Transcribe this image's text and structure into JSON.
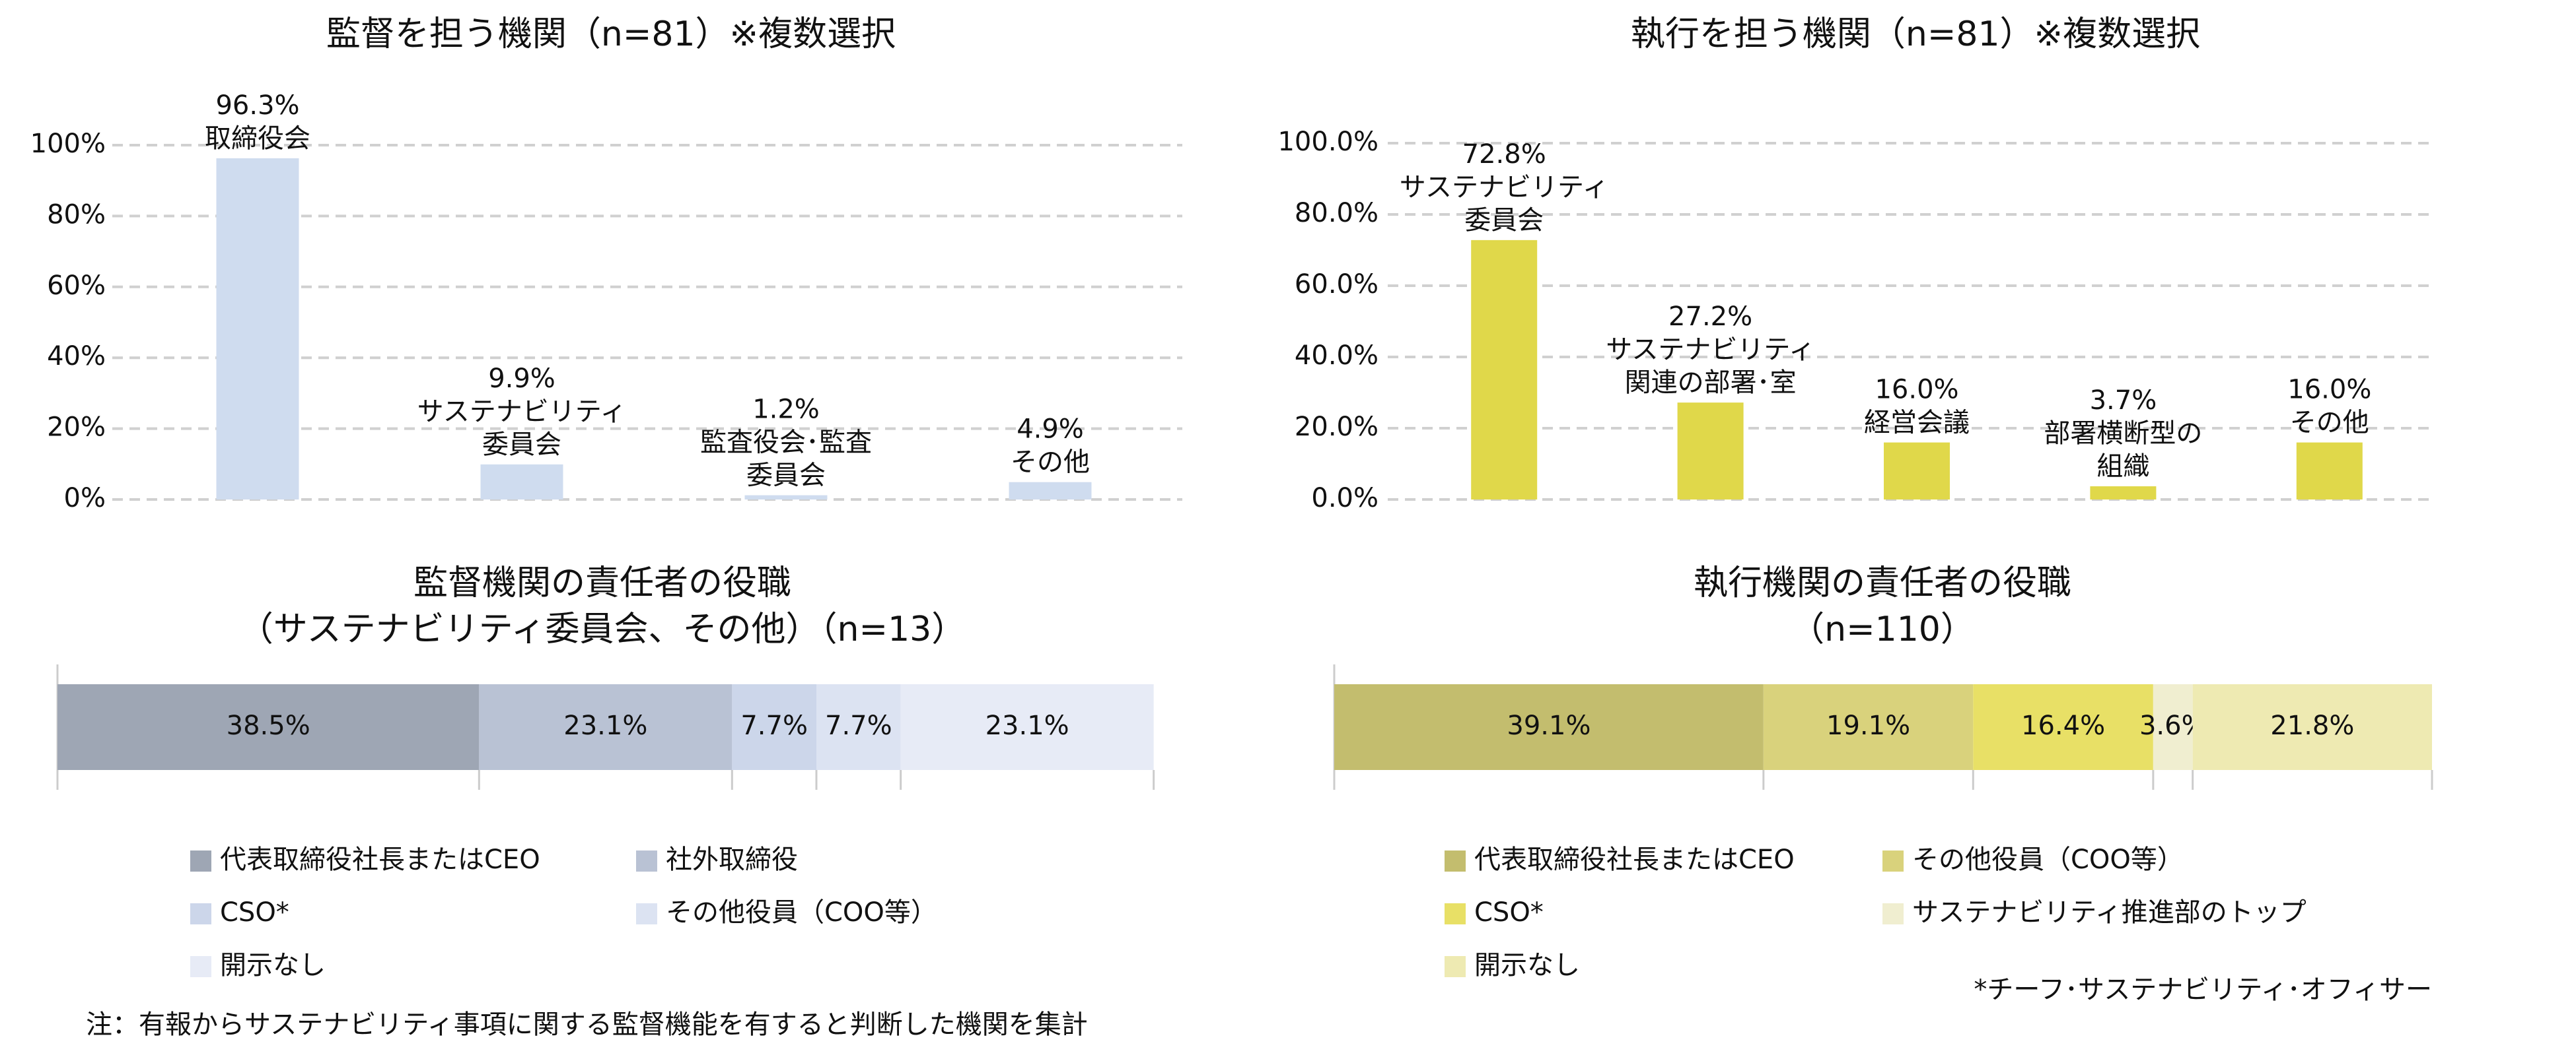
{
  "chart_data": [
    {
      "type": "bar",
      "title": "監督を担う機関（n=81）※複数選択",
      "categories": [
        "取締役会",
        "サステナビリティ\n委員会",
        "監査役会･監査\n委員会",
        "その他"
      ],
      "values": [
        96.3,
        9.9,
        1.2,
        4.9
      ],
      "value_labels": [
        "96.3%",
        "9.9%",
        "1.2%",
        "4.9%"
      ],
      "color": "#cfdcef",
      "ylim": [
        0,
        100
      ],
      "yticks": [
        {
          "value": 0,
          "label": "0%"
        },
        {
          "value": 20,
          "label": "20%"
        },
        {
          "value": 40,
          "label": "40%"
        },
        {
          "value": 60,
          "label": "60%"
        },
        {
          "value": 80,
          "label": "80%"
        },
        {
          "value": 100,
          "label": "100%"
        }
      ],
      "grid": true
    },
    {
      "type": "bar",
      "title": "執行を担う機関（n=81）※複数選択",
      "categories": [
        "サステナビリティ\n委員会",
        "サステナビリティ\n関連の部署･室",
        "経営会議",
        "部署横断型の\n組織",
        "その他"
      ],
      "values": [
        72.8,
        27.2,
        16.0,
        3.7,
        16.0
      ],
      "value_labels": [
        "72.8%",
        "27.2%",
        "16.0%",
        "3.7%",
        "16.0%"
      ],
      "color": "#e0d84a",
      "ylim": [
        0,
        100
      ],
      "yticks": [
        {
          "value": 0,
          "label": "0.0%"
        },
        {
          "value": 20,
          "label": "20.0%"
        },
        {
          "value": 40,
          "label": "40.0%"
        },
        {
          "value": 60,
          "label": "60.0%"
        },
        {
          "value": 80,
          "label": "80.0%"
        },
        {
          "value": 100,
          "label": "100.0%"
        }
      ],
      "grid": true
    },
    {
      "type": "stacked_bar",
      "title": "監督機関の責任者の役職\n（サステナビリティ委員会、その他）（n=13）",
      "xlim": [
        0,
        100
      ],
      "series": [
        {
          "name": "代表取締役社長またはCEO",
          "color": "#9ea6b4",
          "values": [
            38.5
          ],
          "value_labels": [
            "38.5%"
          ]
        },
        {
          "name": "社外取締役",
          "color": "#b9c2d4",
          "values": [
            23.1
          ],
          "value_labels": [
            "23.1%"
          ]
        },
        {
          "name": "CSO*",
          "color": "#ccd6ea",
          "values": [
            7.7
          ],
          "value_labels": [
            "7.7%"
          ]
        },
        {
          "name": "その他役員（COO等）",
          "color": "#dce3f2",
          "values": [
            7.7
          ],
          "value_labels": [
            "7.7%"
          ]
        },
        {
          "name": "開示なし",
          "color": "#e7ebf6",
          "values": [
            23.1
          ],
          "value_labels": [
            "23.1%"
          ]
        }
      ]
    },
    {
      "type": "stacked_bar",
      "title": "執行機関の責任者の役職\n（n=110）",
      "xlim": [
        0,
        100
      ],
      "series": [
        {
          "name": "代表取締役社長またはCEO",
          "color": "#c3bd6e",
          "values": [
            39.1
          ],
          "value_labels": [
            "39.1%"
          ]
        },
        {
          "name": "その他役員（COO等）",
          "color": "#d9d27c",
          "values": [
            19.1
          ],
          "value_labels": [
            "19.1%"
          ]
        },
        {
          "name": "CSO*",
          "color": "#e8e066",
          "values": [
            16.4
          ],
          "value_labels": [
            "16.4%"
          ]
        },
        {
          "name": "サステナビリティ推進部のトップ",
          "color": "#f0eed0",
          "values": [
            3.6
          ],
          "value_labels": [
            "3.6%"
          ]
        },
        {
          "name": "開示なし",
          "color": "#eeeab2",
          "values": [
            21.8
          ],
          "value_labels": [
            "21.8%"
          ]
        }
      ]
    }
  ],
  "notes": [
    "注：有報からサステナビリティ事項に関する監督機能を有すると判断した機関を集計",
    "*チーフ･サステナビリティ･オフィサー"
  ]
}
